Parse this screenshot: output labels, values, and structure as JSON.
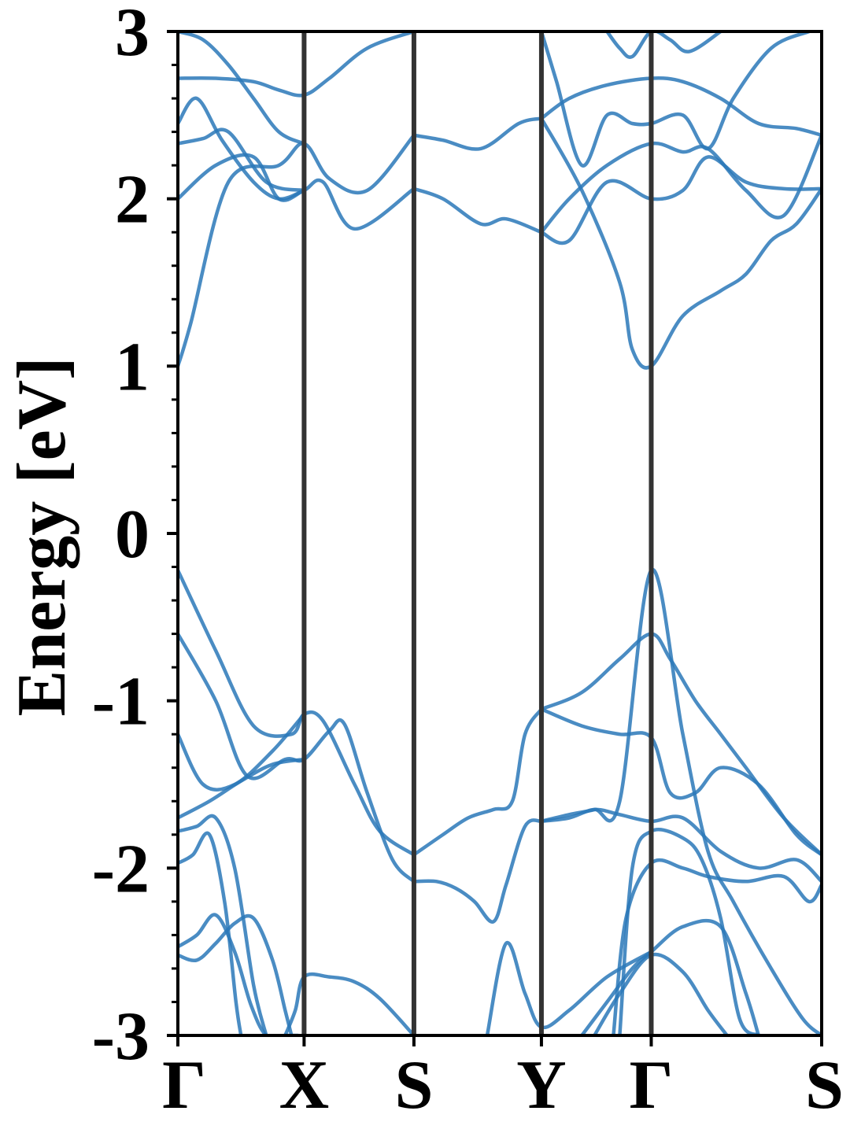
{
  "chart_data": {
    "type": "line",
    "title": "",
    "xlabel": "",
    "ylabel": "Energy [eV]",
    "ylim": [
      -3,
      3
    ],
    "xlim": [
      0,
      5.1
    ],
    "grid": false,
    "legend": "none",
    "line_color": "#2a78b8",
    "kpoints": [
      {
        "label": "Γ",
        "x": 0.0
      },
      {
        "label": "X",
        "x": 1.0
      },
      {
        "label": "S",
        "x": 1.87
      },
      {
        "label": "Y",
        "x": 2.88
      },
      {
        "label": "Γ",
        "x": 3.75
      },
      {
        "label": "S",
        "x": 5.1
      }
    ],
    "yticks": [
      {
        "value": 3,
        "label": "3"
      },
      {
        "value": 2,
        "label": "2"
      },
      {
        "value": 1,
        "label": "1"
      },
      {
        "value": 0,
        "label": "0"
      },
      {
        "value": -1,
        "label": "-1"
      },
      {
        "value": -2,
        "label": "-2"
      },
      {
        "value": -3,
        "label": "-3"
      }
    ],
    "series": [
      {
        "x": [
          0.0,
          0.3,
          0.6,
          0.9,
          1.0,
          1.15,
          1.4,
          1.6,
          1.87
        ],
        "y": [
          -0.22,
          -0.7,
          -1.15,
          -1.2,
          -1.08,
          -1.12,
          -1.5,
          -1.78,
          -1.92
        ]
      },
      {
        "x": [
          0.0,
          0.3,
          0.55,
          0.85,
          1.0,
          1.2,
          1.32,
          1.5,
          1.7,
          1.87
        ],
        "y": [
          -0.6,
          -1.0,
          -1.45,
          -1.35,
          -1.35,
          -1.18,
          -1.14,
          -1.55,
          -1.95,
          -2.08
        ]
      },
      {
        "x": [
          0.0,
          0.2,
          0.45,
          0.75,
          1.0
        ],
        "y": [
          -1.2,
          -1.5,
          -1.5,
          -1.3,
          -1.08
        ]
      },
      {
        "x": [
          0.0,
          0.25,
          0.5,
          0.75,
          1.0
        ],
        "y": [
          -1.7,
          -1.6,
          -1.48,
          -1.38,
          -1.35
        ]
      },
      {
        "x": [
          0.0,
          0.15,
          0.3,
          0.45,
          0.6,
          0.7
        ],
        "y": [
          -1.78,
          -1.75,
          -1.7,
          -2.0,
          -2.7,
          -3.0
        ]
      },
      {
        "x": [
          0.0,
          0.12,
          0.25,
          0.37,
          0.46,
          0.5
        ],
        "y": [
          -1.97,
          -1.92,
          -1.8,
          -2.2,
          -2.8,
          -3.0
        ]
      },
      {
        "x": [
          0.0,
          0.15,
          0.3,
          0.45,
          0.58,
          0.7,
          0.85,
          0.95
        ],
        "y": [
          -2.47,
          -2.4,
          -2.28,
          -2.5,
          -2.82,
          -3.0,
          -3.0,
          -3.0
        ]
      },
      {
        "x": [
          0.0,
          0.15,
          0.3,
          0.45,
          0.6,
          0.75,
          0.85,
          0.9
        ],
        "y": [
          -2.52,
          -2.55,
          -2.45,
          -2.33,
          -2.3,
          -2.55,
          -2.85,
          -3.0
        ]
      },
      {
        "x": [
          0.85,
          0.93,
          1.0,
          1.2,
          1.4,
          1.6,
          1.87
        ],
        "y": [
          -3.0,
          -2.85,
          -2.65,
          -2.65,
          -2.68,
          -2.78,
          -3.0
        ]
      },
      {
        "x": [
          1.87,
          2.1,
          2.3,
          2.5,
          2.65,
          2.75,
          2.88
        ],
        "y": [
          -1.92,
          -1.8,
          -1.7,
          -1.65,
          -1.6,
          -1.2,
          -1.05
        ]
      },
      {
        "x": [
          1.87,
          2.05,
          2.2,
          2.35,
          2.5,
          2.6,
          2.75,
          2.88
        ],
        "y": [
          -2.08,
          -2.08,
          -2.12,
          -2.2,
          -2.32,
          -2.1,
          -1.75,
          -1.72
        ]
      },
      {
        "x": [
          2.45,
          2.6,
          2.75,
          2.88,
          3.1,
          3.4,
          3.75
        ],
        "y": [
          -3.0,
          -2.45,
          -2.75,
          -2.95,
          -2.85,
          -2.65,
          -2.5
        ]
      },
      {
        "x": [
          2.88,
          3.2,
          3.5,
          3.75,
          3.9,
          4.1,
          4.3,
          4.5,
          4.8,
          5.1
        ],
        "y": [
          -1.05,
          -0.95,
          -0.75,
          -0.6,
          -0.75,
          -1.0,
          -1.2,
          -1.4,
          -1.7,
          -1.92
        ]
      },
      {
        "x": [
          2.88,
          3.2,
          3.5,
          3.75,
          3.9,
          4.1,
          4.3,
          4.6,
          4.9,
          5.1
        ],
        "y": [
          -1.05,
          -1.15,
          -1.2,
          -1.22,
          -1.55,
          -1.55,
          -1.4,
          -1.5,
          -1.8,
          -1.92
        ]
      },
      {
        "x": [
          2.88,
          3.1,
          3.3,
          3.5,
          3.75,
          4.0,
          4.2,
          4.4,
          4.7,
          4.95,
          5.1
        ],
        "y": [
          -1.72,
          -1.68,
          -1.65,
          -1.6,
          -0.22,
          -1.2,
          -1.9,
          -2.2,
          -2.6,
          -2.9,
          -3.0
        ]
      },
      {
        "x": [
          2.88,
          3.1,
          3.3,
          3.5,
          3.75,
          4.0,
          4.3,
          4.6,
          4.9,
          5.1
        ],
        "y": [
          -1.72,
          -1.7,
          -1.65,
          -1.68,
          -1.72,
          -1.7,
          -1.9,
          -2.0,
          -1.95,
          -2.08
        ]
      },
      {
        "x": [
          3.5,
          3.6,
          3.75,
          4.0,
          4.15,
          4.3,
          4.45,
          4.6
        ],
        "y": [
          -3.0,
          -2.0,
          -1.78,
          -1.82,
          -1.95,
          -2.3,
          -2.9,
          -3.0
        ]
      },
      {
        "x": [
          3.45,
          3.55,
          3.75,
          4.0,
          4.2,
          4.5,
          4.8,
          5.0,
          5.1
        ],
        "y": [
          -3.0,
          -2.3,
          -1.97,
          -2.0,
          -2.05,
          -2.08,
          -2.05,
          -2.2,
          -2.1
        ]
      },
      {
        "x": [
          3.2,
          3.4,
          3.6,
          3.75,
          4.0,
          4.3,
          4.5,
          4.6
        ],
        "y": [
          -3.0,
          -2.8,
          -2.6,
          -2.5,
          -2.35,
          -2.35,
          -2.75,
          -3.0
        ]
      },
      {
        "x": [
          3.3,
          3.5,
          3.75,
          4.0,
          4.2,
          4.35
        ],
        "y": [
          -3.0,
          -2.75,
          -2.52,
          -2.62,
          -2.85,
          -3.0
        ]
      },
      {
        "x": [
          0.0,
          0.1,
          0.4,
          0.8,
          1.0,
          1.2,
          1.5,
          1.87
        ],
        "y": [
          1.0,
          1.25,
          2.1,
          2.2,
          2.33,
          2.12,
          2.05,
          2.38
        ]
      },
      {
        "x": [
          0.0,
          0.3,
          0.6,
          0.8,
          1.0,
          1.15,
          1.4,
          1.87
        ],
        "y": [
          2.0,
          2.2,
          2.25,
          2.0,
          2.05,
          2.1,
          1.82,
          2.06
        ]
      },
      {
        "x": [
          0.0,
          0.2,
          0.4,
          0.7,
          1.0
        ],
        "y": [
          2.33,
          2.36,
          2.4,
          2.1,
          2.05
        ]
      },
      {
        "x": [
          0.0,
          0.15,
          0.35,
          0.6,
          0.8,
          1.0
        ],
        "y": [
          2.45,
          2.6,
          2.35,
          2.1,
          2.0,
          2.05
        ]
      },
      {
        "x": [
          0.0,
          0.3,
          0.6,
          0.8,
          1.0,
          1.2,
          1.5,
          1.87
        ],
        "y": [
          2.72,
          2.72,
          2.7,
          2.65,
          2.62,
          2.72,
          2.9,
          3.0
        ]
      },
      {
        "x": [
          0.0,
          0.2,
          0.4,
          0.6,
          0.8,
          1.0
        ],
        "y": [
          3.0,
          2.95,
          2.8,
          2.6,
          2.4,
          2.33
        ]
      },
      {
        "x": [
          1.87,
          2.1,
          2.4,
          2.7,
          2.88
        ],
        "y": [
          2.38,
          2.35,
          2.3,
          2.45,
          2.48
        ]
      },
      {
        "x": [
          1.87,
          2.1,
          2.4,
          2.6,
          2.88
        ],
        "y": [
          2.06,
          2.0,
          1.85,
          1.88,
          1.8
        ]
      },
      {
        "x": [
          2.88,
          3.1,
          3.4,
          3.75,
          4.0,
          4.2,
          4.5,
          4.8,
          5.1
        ],
        "y": [
          1.8,
          2.0,
          2.2,
          2.33,
          2.28,
          2.3,
          2.05,
          1.9,
          2.38
        ]
      },
      {
        "x": [
          2.88,
          3.1,
          3.4,
          3.75,
          4.0,
          4.2,
          4.5,
          4.8,
          5.1
        ],
        "y": [
          1.8,
          1.75,
          2.1,
          2.0,
          2.05,
          2.25,
          2.1,
          2.06,
          2.06
        ]
      },
      {
        "x": [
          2.88,
          3.1,
          3.4,
          3.75,
          4.0,
          4.3,
          4.6,
          4.9,
          5.1
        ],
        "y": [
          2.48,
          2.6,
          2.68,
          2.72,
          2.7,
          2.6,
          2.45,
          2.42,
          2.38
        ]
      },
      {
        "x": [
          2.88,
          3.2,
          3.5,
          3.6,
          3.75,
          4.0,
          4.3,
          4.5,
          4.7,
          4.9,
          5.1
        ],
        "y": [
          2.48,
          2.05,
          1.5,
          1.1,
          1.0,
          1.3,
          1.45,
          1.55,
          1.75,
          1.85,
          2.06
        ]
      },
      {
        "x": [
          2.88,
          3.0,
          3.2,
          3.4,
          3.6,
          3.75,
          4.0,
          4.2,
          4.4,
          4.7,
          5.0
        ],
        "y": [
          3.0,
          2.7,
          2.2,
          2.5,
          2.45,
          2.45,
          2.5,
          2.3,
          2.6,
          2.9,
          3.0
        ]
      },
      {
        "x": [
          3.4,
          3.5,
          3.6,
          3.75,
          3.9,
          4.05,
          4.3
        ],
        "y": [
          3.0,
          2.9,
          2.85,
          3.0,
          2.95,
          2.88,
          3.0
        ]
      }
    ]
  }
}
